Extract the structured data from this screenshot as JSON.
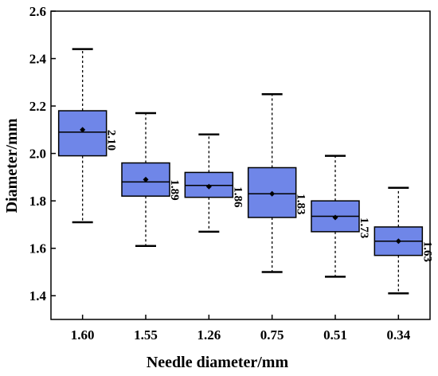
{
  "chart_data": {
    "type": "box",
    "xlabel": "Needle diameter/mm",
    "ylabel": "Diameter/mm",
    "ylim": [
      1.3,
      2.6
    ],
    "yticks": [
      "1.4",
      "1.6",
      "1.8",
      "2.0",
      "2.2",
      "2.4",
      "2.6"
    ],
    "categories": [
      "1.60",
      "1.55",
      "1.26",
      "0.75",
      "0.51",
      "0.34"
    ],
    "boxes": [
      {
        "category": "1.60",
        "whisker_low": 1.71,
        "q1": 1.99,
        "median": 2.09,
        "q3": 2.18,
        "whisker_high": 2.44,
        "mean": 2.1,
        "label": "2.10"
      },
      {
        "category": "1.55",
        "whisker_low": 1.61,
        "q1": 1.82,
        "median": 1.88,
        "q3": 1.96,
        "whisker_high": 2.17,
        "mean": 1.89,
        "label": "1.89"
      },
      {
        "category": "1.26",
        "whisker_low": 1.67,
        "q1": 1.815,
        "median": 1.865,
        "q3": 1.92,
        "whisker_high": 2.08,
        "mean": 1.86,
        "label": "1.86"
      },
      {
        "category": "0.75",
        "whisker_low": 1.5,
        "q1": 1.73,
        "median": 1.83,
        "q3": 1.94,
        "whisker_high": 2.25,
        "mean": 1.83,
        "label": "1.83"
      },
      {
        "category": "0.51",
        "whisker_low": 1.48,
        "q1": 1.67,
        "median": 1.735,
        "q3": 1.8,
        "whisker_high": 1.99,
        "mean": 1.73,
        "label": "1.73"
      },
      {
        "category": "0.34",
        "whisker_low": 1.41,
        "q1": 1.57,
        "median": 1.63,
        "q3": 1.69,
        "whisker_high": 1.855,
        "mean": 1.63,
        "label": "1.63"
      }
    ],
    "box_color": "#6f86e8",
    "box_edge_color": "#000000",
    "grid": false,
    "legend": "none"
  }
}
